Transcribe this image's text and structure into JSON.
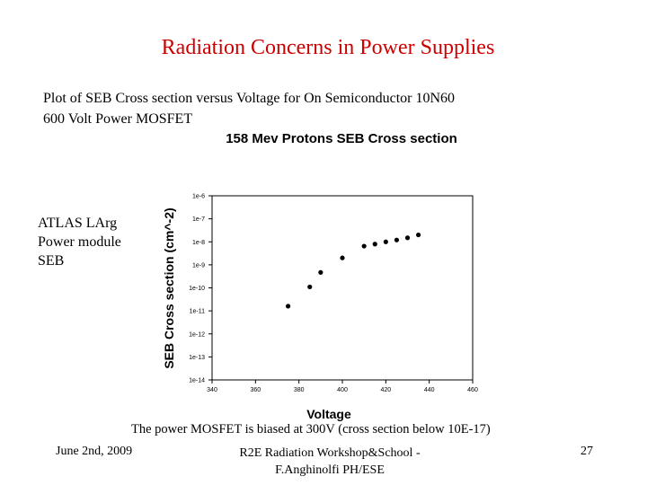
{
  "slide": {
    "title": "Radiation Concerns in Power Supplies",
    "intro_line1": "Plot of SEB Cross section versus Voltage for On Semiconductor 10N60",
    "intro_line2": "600 Volt Power MOSFET",
    "side_line1": "ATLAS LArg",
    "side_line2": "Power module",
    "side_line3": "SEB",
    "caption": "The power MOSFET is biased at 300V (cross section below 10E-17)",
    "footer_date": "June 2nd, 2009",
    "footer_center_line1": "R2E Radiation Workshop&School -",
    "footer_center_line2": "F.Anghinolfi PH/ESE",
    "page_number": "27"
  },
  "chart_data": {
    "type": "scatter",
    "title": "158 Mev Protons SEB Cross section",
    "xlabel": "Voltage",
    "ylabel": "SEB Cross section (cm^-2)",
    "xlim": [
      340,
      460
    ],
    "ylim_exponent": [
      -14,
      -6
    ],
    "log_y": true,
    "grid": false,
    "x_ticks": [
      "340",
      "360",
      "380",
      "400",
      "420",
      "440",
      "460"
    ],
    "y_ticks": [
      "1e-6",
      "1e-7",
      "1e-8",
      "1e-9",
      "1e-10",
      "1e-11",
      "1e-12",
      "1e-13",
      "1e-14"
    ],
    "x": [
      375,
      385,
      390,
      400,
      410,
      415,
      420,
      425,
      430,
      435
    ],
    "y": [
      1.6e-11,
      1.1e-10,
      4.7e-10,
      2e-09,
      6.5e-09,
      8e-09,
      1e-08,
      1.2e-08,
      1.5e-08,
      2e-08
    ],
    "colors": {
      "points": "#000000",
      "axes": "#000000",
      "title": "#cc0000"
    }
  }
}
